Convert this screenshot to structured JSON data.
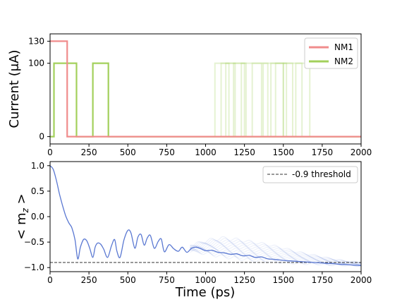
{
  "chart_data": [
    {
      "type": "line",
      "xlabel": "",
      "ylabel": "Current (μA)",
      "xlim": [
        0,
        2000
      ],
      "ylim": [
        -10,
        140
      ],
      "xticks": [
        0,
        250,
        500,
        750,
        1000,
        1250,
        1500,
        1750,
        2000
      ],
      "yticks": [
        0,
        100,
        130
      ],
      "grid": false,
      "legend_position": "top-right",
      "series": [
        {
          "name": "NM1",
          "color": "#f08c8c",
          "x": [
            0,
            110,
            110,
            2000
          ],
          "y": [
            130,
            130,
            0,
            0
          ]
        },
        {
          "name": "NM2",
          "color": "#a3d05c",
          "x": [
            0,
            25,
            25,
            170,
            170,
            275,
            275,
            375,
            375,
            2000
          ],
          "y": [
            0,
            0,
            100,
            100,
            0,
            0,
            100,
            100,
            0,
            0
          ]
        }
      ],
      "faint_pulses": {
        "color": "#a3d05c",
        "level": 100,
        "intervals": [
          [
            1060,
            1150
          ],
          [
            1100,
            1190
          ],
          [
            1130,
            1250
          ],
          [
            1180,
            1260
          ],
          [
            1230,
            1360
          ],
          [
            1300,
            1400
          ],
          [
            1370,
            1500
          ],
          [
            1420,
            1520
          ],
          [
            1450,
            1560
          ],
          [
            1500,
            1620
          ],
          [
            1580,
            1670
          ]
        ]
      }
    },
    {
      "type": "line",
      "xlabel": "Time (ps)",
      "ylabel": "< m_z >",
      "xlim": [
        0,
        2000
      ],
      "ylim": [
        -1.08,
        1.08
      ],
      "xticks": [
        0,
        250,
        500,
        750,
        1000,
        1250,
        1500,
        1750,
        2000
      ],
      "yticks": [
        -1.0,
        -0.5,
        0.0,
        0.5,
        1.0
      ],
      "grid": false,
      "legend_position": "top-right",
      "color": "#5a78d2",
      "threshold": {
        "name": "-0.9 threshold",
        "value": -0.9,
        "style": "dashed",
        "color": "#333333"
      },
      "main_curve": {
        "x": [
          0,
          20,
          40,
          60,
          80,
          100,
          120,
          140,
          160,
          178,
          195,
          215,
          235,
          255,
          275,
          290,
          305,
          325,
          345,
          370,
          395,
          415,
          430,
          450,
          475,
          500,
          520,
          545,
          565,
          585,
          605,
          625,
          645,
          670,
          695,
          715,
          735,
          765,
          795,
          825,
          850,
          880,
          910,
          940,
          970,
          1000,
          1040,
          1080,
          1120,
          1160,
          1200,
          1240,
          1280,
          1320,
          1360,
          1400,
          1450,
          1500,
          1550,
          1600,
          1650,
          1700,
          1750,
          1800,
          1850,
          1900,
          1950,
          2000
        ],
        "y": [
          1.0,
          0.93,
          0.72,
          0.45,
          0.22,
          0.02,
          -0.12,
          -0.22,
          -0.45,
          -0.83,
          -0.6,
          -0.45,
          -0.47,
          -0.62,
          -0.8,
          -0.6,
          -0.52,
          -0.54,
          -0.64,
          -0.8,
          -0.57,
          -0.45,
          -0.68,
          -0.8,
          -0.46,
          -0.27,
          -0.32,
          -0.62,
          -0.4,
          -0.35,
          -0.56,
          -0.42,
          -0.37,
          -0.62,
          -0.49,
          -0.44,
          -0.69,
          -0.55,
          -0.63,
          -0.68,
          -0.6,
          -0.7,
          -0.62,
          -0.6,
          -0.63,
          -0.67,
          -0.66,
          -0.7,
          -0.71,
          -0.74,
          -0.73,
          -0.77,
          -0.76,
          -0.8,
          -0.79,
          -0.83,
          -0.84,
          -0.86,
          -0.87,
          -0.88,
          -0.89,
          -0.9,
          -0.91,
          -0.92,
          -0.93,
          -0.94,
          -0.95,
          -0.96
        ]
      },
      "ensemble_note_free": true,
      "ensemble_spread": {
        "x": [
          900,
          1000,
          1100,
          1200,
          1300,
          1400,
          1500,
          1600,
          1700,
          1800,
          1900,
          2000
        ],
        "upper": [
          -0.58,
          -0.48,
          -0.42,
          -0.45,
          -0.5,
          -0.55,
          -0.62,
          -0.7,
          -0.76,
          -0.82,
          -0.87,
          -0.9
        ],
        "lower": [
          -0.66,
          -0.72,
          -0.78,
          -0.82,
          -0.86,
          -0.88,
          -0.9,
          -0.92,
          -0.93,
          -0.95,
          -0.96,
          -0.97
        ]
      }
    }
  ]
}
